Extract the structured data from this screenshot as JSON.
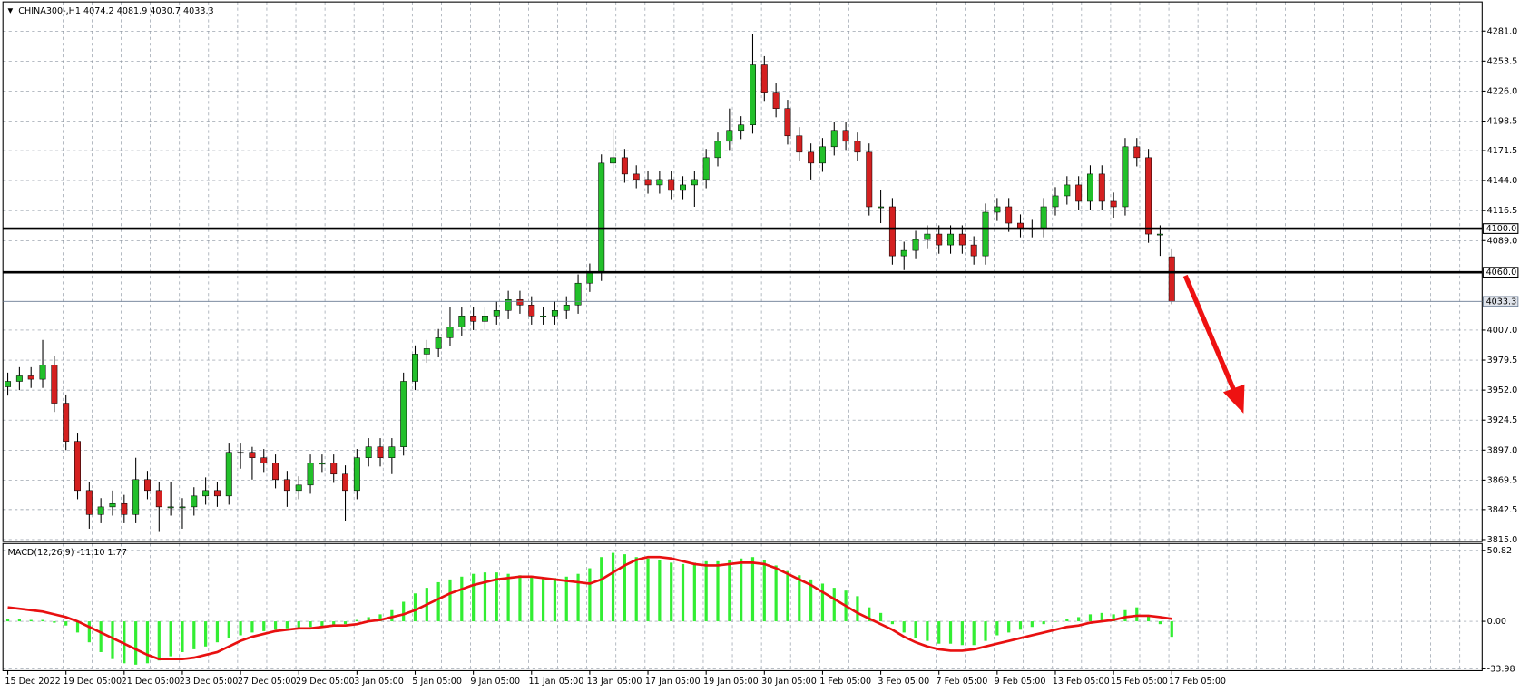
{
  "chart_data": [
    {
      "type": "candlestick",
      "title": "CHINA300-,H1",
      "x_labels": [
        "15 Dec 2022",
        "19 Dec 05:00",
        "21 Dec 05:00",
        "23 Dec 05:00",
        "27 Dec 05:00",
        "29 Dec 05:00",
        "3 Jan 05:00",
        "5 Jan 05:00",
        "9 Jan 05:00",
        "11 Jan 05:00",
        "13 Jan 05:00",
        "17 Jan 05:00",
        "19 Jan 05:00",
        "30 Jan 05:00",
        "1 Feb 05:00",
        "3 Feb 05:00",
        "7 Feb 05:00",
        "9 Feb 05:00",
        "13 Feb 05:00",
        "15 Feb 05:00",
        "17 Feb 05:00"
      ],
      "open": [
        3955,
        3960,
        3965,
        3962,
        3975,
        3940,
        3905,
        3860,
        3838,
        3845,
        3848,
        3838,
        3870,
        3860,
        3845,
        3845,
        3845,
        3855,
        3860,
        3855,
        3895,
        3895,
        3890,
        3885,
        3870,
        3860,
        3865,
        3885,
        3885,
        3875,
        3860,
        3890,
        3900,
        3890,
        3900,
        3960,
        3985,
        3990,
        4000,
        4010,
        4020,
        4015,
        4020,
        4025,
        4035,
        4030,
        4020,
        4020,
        4025,
        4030,
        4050,
        4060,
        4160,
        4165,
        4150,
        4145,
        4140,
        4145,
        4135,
        4140,
        4145,
        4165,
        4180,
        4190,
        4195,
        4250,
        4225,
        4210,
        4185,
        4170,
        4160,
        4175,
        4190,
        4180,
        4170,
        4120,
        4120,
        4075,
        4080,
        4090,
        4095,
        4085,
        4095,
        4085,
        4075,
        4115,
        4120,
        4105,
        4100,
        4100,
        4120,
        4130,
        4140,
        4125,
        4150,
        4125,
        4120,
        4175,
        4165,
        4095,
        4074.2
      ],
      "high": [
        3968,
        3973,
        3973,
        3998,
        3983,
        3948,
        3913,
        3868,
        3853,
        3860,
        3856,
        3890,
        3878,
        3868,
        3868,
        3853,
        3863,
        3872,
        3868,
        3903,
        3903,
        3900,
        3898,
        3893,
        3878,
        3873,
        3893,
        3893,
        3893,
        3883,
        3898,
        3908,
        3908,
        3908,
        3968,
        3993,
        3998,
        4008,
        4028,
        4028,
        4028,
        4028,
        4033,
        4043,
        4043,
        4038,
        4028,
        4033,
        4038,
        4058,
        4068,
        4168,
        4192,
        4173,
        4158,
        4153,
        4153,
        4153,
        4148,
        4153,
        4173,
        4188,
        4210,
        4203,
        4278,
        4258,
        4233,
        4218,
        4193,
        4178,
        4183,
        4198,
        4198,
        4188,
        4178,
        4135,
        4128,
        4088,
        4098,
        4103,
        4103,
        4103,
        4103,
        4093,
        4123,
        4128,
        4128,
        4113,
        4108,
        4128,
        4138,
        4148,
        4148,
        4158,
        4158,
        4133,
        4183,
        4183,
        4173,
        4103,
        4081.9
      ],
      "low": [
        3947,
        3952,
        3954,
        3954,
        3932,
        3897,
        3852,
        3825,
        3830,
        3837,
        3830,
        3830,
        3852,
        3822,
        3837,
        3825,
        3837,
        3847,
        3845,
        3847,
        3880,
        3870,
        3877,
        3862,
        3845,
        3852,
        3857,
        3877,
        3867,
        3832,
        3852,
        3882,
        3882,
        3875,
        3892,
        3952,
        3977,
        3982,
        3992,
        4002,
        4007,
        4007,
        4012,
        4017,
        4022,
        4012,
        4012,
        4012,
        4017,
        4022,
        4042,
        4052,
        4152,
        4142,
        4137,
        4132,
        4132,
        4127,
        4127,
        4120,
        4137,
        4157,
        4172,
        4182,
        4187,
        4217,
        4202,
        4177,
        4162,
        4145,
        4152,
        4167,
        4172,
        4162,
        4112,
        4105,
        4067,
        4062,
        4072,
        4082,
        4077,
        4077,
        4077,
        4067,
        4067,
        4107,
        4097,
        4092,
        4092,
        4092,
        4112,
        4122,
        4117,
        4117,
        4117,
        4110,
        4112,
        4157,
        4087,
        4075,
        4030.7
      ],
      "close": [
        3960,
        3965,
        3962,
        3975,
        3940,
        3905,
        3860,
        3838,
        3845,
        3848,
        3838,
        3870,
        3860,
        3845,
        3845,
        3845,
        3855,
        3860,
        3855,
        3895,
        3895,
        3890,
        3885,
        3870,
        3860,
        3865,
        3885,
        3885,
        3875,
        3860,
        3890,
        3900,
        3890,
        3900,
        3960,
        3985,
        3990,
        4000,
        4010,
        4020,
        4015,
        4020,
        4025,
        4035,
        4030,
        4020,
        4020,
        4025,
        4030,
        4050,
        4060,
        4160,
        4165,
        4150,
        4145,
        4140,
        4145,
        4135,
        4140,
        4145,
        4165,
        4180,
        4190,
        4195,
        4250,
        4225,
        4210,
        4185,
        4170,
        4160,
        4175,
        4190,
        4180,
        4170,
        4120,
        4120,
        4075,
        4080,
        4090,
        4095,
        4085,
        4095,
        4085,
        4075,
        4115,
        4120,
        4105,
        4100,
        4100,
        4120,
        4130,
        4140,
        4125,
        4150,
        4125,
        4120,
        4175,
        4165,
        4095,
        4095,
        4033.3
      ],
      "up_color": "#22c02a",
      "down_color": "#d42020",
      "ylim": [
        3813.2,
        4307.7
      ],
      "yticks": [
        {
          "value": 4281,
          "label": "4281.0"
        },
        {
          "value": 4253.5,
          "label": "4253.5"
        },
        {
          "value": 4226,
          "label": "4226.0"
        },
        {
          "value": 4198.5,
          "label": "4198.5"
        },
        {
          "value": 4171.5,
          "label": "4171.5"
        },
        {
          "value": 4144,
          "label": "4144.0"
        },
        {
          "value": 4116.5,
          "label": "4116.5"
        },
        {
          "value": 4089,
          "label": "4089.0"
        },
        {
          "value": 4007,
          "label": "4007.0"
        },
        {
          "value": 3979.5,
          "label": "3979.5"
        },
        {
          "value": 3952,
          "label": "3952.0"
        },
        {
          "value": 3924.5,
          "label": "3924.5"
        },
        {
          "value": 3897,
          "label": "3897.0"
        },
        {
          "value": 3869.5,
          "label": "3869.5"
        },
        {
          "value": 3842.5,
          "label": "3842.5"
        },
        {
          "value": 3815,
          "label": "3815.0"
        }
      ],
      "hlines": [
        {
          "value": 4100,
          "label": "4100.0"
        },
        {
          "value": 4060,
          "label": "4060.0"
        }
      ],
      "grid": true
    },
    {
      "type": "macd",
      "title": "MACD(12,26,9) -11.10 1.77",
      "histogram": [
        2,
        2,
        1,
        1,
        -1,
        -3,
        -8,
        -15,
        -22,
        -27,
        -30,
        -31,
        -30,
        -28,
        -25,
        -22,
        -20,
        -18,
        -15,
        -12,
        -10,
        -8,
        -7,
        -6,
        -5,
        -5,
        -4,
        -4,
        -3,
        -2,
        1,
        3,
        5,
        8,
        14,
        20,
        24,
        28,
        30,
        32,
        34,
        35,
        35,
        34,
        33,
        32,
        31,
        31,
        32,
        34,
        38,
        46,
        49,
        48,
        46,
        45,
        44,
        42,
        41,
        42,
        43,
        43,
        44,
        45,
        46,
        44,
        40,
        36,
        33,
        30,
        27,
        24,
        22,
        18,
        10,
        6,
        -2,
        -8,
        -12,
        -14,
        -16,
        -16,
        -17,
        -17,
        -14,
        -10,
        -8,
        -6,
        -4,
        -2,
        0,
        2,
        3,
        5,
        6,
        5,
        8,
        10,
        4,
        -2,
        -11.1
      ],
      "signal": [
        10,
        9,
        8,
        7,
        5,
        3,
        0,
        -4,
        -8,
        -12,
        -16,
        -20,
        -24,
        -27,
        -27,
        -27,
        -26,
        -24,
        -22,
        -18,
        -14,
        -11,
        -9,
        -7,
        -6,
        -5,
        -5,
        -4,
        -3,
        -3,
        -2,
        0,
        1,
        3,
        5,
        8,
        12,
        16,
        20,
        23,
        26,
        28,
        30,
        31,
        32,
        32,
        31,
        30,
        29,
        28,
        27,
        30,
        35,
        40,
        44,
        46,
        46,
        45,
        43,
        41,
        40,
        40,
        41,
        42,
        42,
        41,
        38,
        34,
        30,
        26,
        21,
        16,
        11,
        6,
        2,
        -2,
        -6,
        -11,
        -15,
        -18,
        -20,
        -21,
        -21,
        -20,
        -18,
        -16,
        -14,
        -12,
        -10,
        -8,
        -6,
        -4,
        -3,
        -1,
        0,
        1,
        3,
        4,
        4,
        3,
        1.77
      ],
      "histogram_color": "#33ee33",
      "signal_color": "#e81010",
      "ylim": [
        -35.3,
        55.7
      ],
      "yticks": [
        {
          "value": 50.82,
          "label": "50.82"
        },
        {
          "value": 0,
          "label": "0.00"
        },
        {
          "value": -33.98,
          "label": "-33.98"
        }
      ]
    }
  ]
}
